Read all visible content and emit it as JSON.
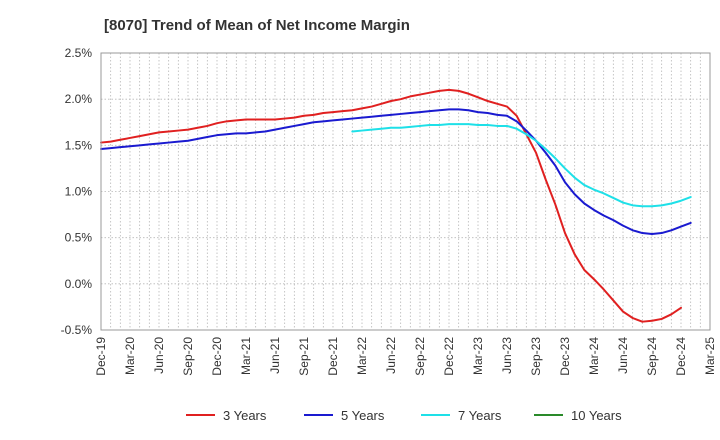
{
  "chart_data": {
    "type": "line",
    "title": "[8070]  Trend of Mean of Net Income Margin",
    "xlabel": "",
    "ylabel": "",
    "x_ticks": [
      "Dec-19",
      "Mar-20",
      "Jun-20",
      "Sep-20",
      "Dec-20",
      "Mar-21",
      "Jun-21",
      "Sep-21",
      "Dec-21",
      "Mar-22",
      "Jun-22",
      "Sep-22",
      "Dec-22",
      "Mar-23",
      "Jun-23",
      "Sep-23",
      "Dec-23",
      "Mar-24",
      "Jun-24",
      "Sep-24",
      "Dec-24",
      "Mar-25"
    ],
    "y_ticks": [
      "2.5%",
      "2.0%",
      "1.5%",
      "1.0%",
      "0.5%",
      "0.0%",
      "-0.5%"
    ],
    "y_tick_values": [
      2.5,
      2.0,
      1.5,
      1.0,
      0.5,
      0.0,
      -0.5
    ],
    "ylim": [
      -0.5,
      2.5
    ],
    "grid": true,
    "legend_position": "bottom",
    "series": [
      {
        "name": "3 Years",
        "color": "#e02020",
        "points": [
          [
            "Dec-19",
            1.53
          ],
          [
            "Jan-20",
            1.54
          ],
          [
            "Feb-20",
            1.56
          ],
          [
            "Mar-20",
            1.58
          ],
          [
            "Apr-20",
            1.6
          ],
          [
            "May-20",
            1.62
          ],
          [
            "Jun-20",
            1.64
          ],
          [
            "Jul-20",
            1.65
          ],
          [
            "Aug-20",
            1.66
          ],
          [
            "Sep-20",
            1.67
          ],
          [
            "Oct-20",
            1.69
          ],
          [
            "Nov-20",
            1.71
          ],
          [
            "Dec-20",
            1.74
          ],
          [
            "Jan-21",
            1.76
          ],
          [
            "Feb-21",
            1.77
          ],
          [
            "Mar-21",
            1.78
          ],
          [
            "Apr-21",
            1.78
          ],
          [
            "May-21",
            1.78
          ],
          [
            "Jun-21",
            1.78
          ],
          [
            "Jul-21",
            1.79
          ],
          [
            "Aug-21",
            1.8
          ],
          [
            "Sep-21",
            1.82
          ],
          [
            "Oct-21",
            1.83
          ],
          [
            "Nov-21",
            1.85
          ],
          [
            "Dec-21",
            1.86
          ],
          [
            "Jan-22",
            1.87
          ],
          [
            "Feb-22",
            1.88
          ],
          [
            "Mar-22",
            1.9
          ],
          [
            "Apr-22",
            1.92
          ],
          [
            "May-22",
            1.95
          ],
          [
            "Jun-22",
            1.98
          ],
          [
            "Jul-22",
            2.0
          ],
          [
            "Aug-22",
            2.03
          ],
          [
            "Sep-22",
            2.05
          ],
          [
            "Oct-22",
            2.07
          ],
          [
            "Nov-22",
            2.09
          ],
          [
            "Dec-22",
            2.1
          ],
          [
            "Jan-23",
            2.09
          ],
          [
            "Feb-23",
            2.06
          ],
          [
            "Mar-23",
            2.02
          ],
          [
            "Apr-23",
            1.98
          ],
          [
            "May-23",
            1.95
          ],
          [
            "Jun-23",
            1.92
          ],
          [
            "Jul-23",
            1.82
          ],
          [
            "Aug-23",
            1.62
          ],
          [
            "Sep-23",
            1.42
          ],
          [
            "Oct-23",
            1.13
          ],
          [
            "Nov-23",
            0.86
          ],
          [
            "Dec-23",
            0.55
          ],
          [
            "Jan-24",
            0.32
          ],
          [
            "Feb-24",
            0.15
          ],
          [
            "Mar-24",
            0.05
          ],
          [
            "Apr-24",
            -0.06
          ],
          [
            "May-24",
            -0.18
          ],
          [
            "Jun-24",
            -0.3
          ],
          [
            "Jul-24",
            -0.37
          ],
          [
            "Aug-24",
            -0.41
          ],
          [
            "Sep-24",
            -0.4
          ],
          [
            "Oct-24",
            -0.38
          ],
          [
            "Nov-24",
            -0.33
          ],
          [
            "Dec-24",
            -0.26
          ]
        ]
      },
      {
        "name": "5 Years",
        "color": "#1a1ad0",
        "points": [
          [
            "Dec-19",
            1.46
          ],
          [
            "Jan-20",
            1.47
          ],
          [
            "Feb-20",
            1.48
          ],
          [
            "Mar-20",
            1.49
          ],
          [
            "Apr-20",
            1.5
          ],
          [
            "May-20",
            1.51
          ],
          [
            "Jun-20",
            1.52
          ],
          [
            "Jul-20",
            1.53
          ],
          [
            "Aug-20",
            1.54
          ],
          [
            "Sep-20",
            1.55
          ],
          [
            "Oct-20",
            1.57
          ],
          [
            "Nov-20",
            1.59
          ],
          [
            "Dec-20",
            1.61
          ],
          [
            "Jan-21",
            1.62
          ],
          [
            "Feb-21",
            1.63
          ],
          [
            "Mar-21",
            1.63
          ],
          [
            "Apr-21",
            1.64
          ],
          [
            "May-21",
            1.65
          ],
          [
            "Jun-21",
            1.67
          ],
          [
            "Jul-21",
            1.69
          ],
          [
            "Aug-21",
            1.71
          ],
          [
            "Sep-21",
            1.73
          ],
          [
            "Oct-21",
            1.75
          ],
          [
            "Nov-21",
            1.76
          ],
          [
            "Dec-21",
            1.77
          ],
          [
            "Jan-22",
            1.78
          ],
          [
            "Feb-22",
            1.79
          ],
          [
            "Mar-22",
            1.8
          ],
          [
            "Apr-22",
            1.81
          ],
          [
            "May-22",
            1.82
          ],
          [
            "Jun-22",
            1.83
          ],
          [
            "Jul-22",
            1.84
          ],
          [
            "Aug-22",
            1.85
          ],
          [
            "Sep-22",
            1.86
          ],
          [
            "Oct-22",
            1.87
          ],
          [
            "Nov-22",
            1.88
          ],
          [
            "Dec-22",
            1.89
          ],
          [
            "Jan-23",
            1.89
          ],
          [
            "Feb-23",
            1.88
          ],
          [
            "Mar-23",
            1.86
          ],
          [
            "Apr-23",
            1.85
          ],
          [
            "May-23",
            1.83
          ],
          [
            "Jun-23",
            1.82
          ],
          [
            "Jul-23",
            1.76
          ],
          [
            "Aug-23",
            1.66
          ],
          [
            "Sep-23",
            1.55
          ],
          [
            "Oct-23",
            1.42
          ],
          [
            "Nov-23",
            1.28
          ],
          [
            "Dec-23",
            1.1
          ],
          [
            "Jan-24",
            0.97
          ],
          [
            "Feb-24",
            0.87
          ],
          [
            "Mar-24",
            0.8
          ],
          [
            "Apr-24",
            0.74
          ],
          [
            "May-24",
            0.69
          ],
          [
            "Jun-24",
            0.63
          ],
          [
            "Jul-24",
            0.58
          ],
          [
            "Aug-24",
            0.55
          ],
          [
            "Sep-24",
            0.54
          ],
          [
            "Oct-24",
            0.55
          ],
          [
            "Nov-24",
            0.58
          ],
          [
            "Dec-24",
            0.62
          ],
          [
            "Jan-25",
            0.66
          ]
        ]
      },
      {
        "name": "7 Years",
        "color": "#1ee0e8",
        "points": [
          [
            "Feb-22",
            1.65
          ],
          [
            "Mar-22",
            1.66
          ],
          [
            "Apr-22",
            1.67
          ],
          [
            "May-22",
            1.68
          ],
          [
            "Jun-22",
            1.69
          ],
          [
            "Jul-22",
            1.69
          ],
          [
            "Aug-22",
            1.7
          ],
          [
            "Sep-22",
            1.71
          ],
          [
            "Oct-22",
            1.72
          ],
          [
            "Nov-22",
            1.72
          ],
          [
            "Dec-22",
            1.73
          ],
          [
            "Jan-23",
            1.73
          ],
          [
            "Feb-23",
            1.73
          ],
          [
            "Mar-23",
            1.72
          ],
          [
            "Apr-23",
            1.72
          ],
          [
            "May-23",
            1.71
          ],
          [
            "Jun-23",
            1.71
          ],
          [
            "Jul-23",
            1.68
          ],
          [
            "Aug-23",
            1.62
          ],
          [
            "Sep-23",
            1.55
          ],
          [
            "Oct-23",
            1.46
          ],
          [
            "Nov-23",
            1.36
          ],
          [
            "Dec-23",
            1.25
          ],
          [
            "Jan-24",
            1.15
          ],
          [
            "Feb-24",
            1.07
          ],
          [
            "Mar-24",
            1.02
          ],
          [
            "Apr-24",
            0.98
          ],
          [
            "May-24",
            0.93
          ],
          [
            "Jun-24",
            0.88
          ],
          [
            "Jul-24",
            0.85
          ],
          [
            "Aug-24",
            0.84
          ],
          [
            "Sep-24",
            0.84
          ],
          [
            "Oct-24",
            0.85
          ],
          [
            "Nov-24",
            0.87
          ],
          [
            "Dec-24",
            0.9
          ],
          [
            "Jan-25",
            0.94
          ]
        ]
      },
      {
        "name": "10 Years",
        "color": "#2a8a2a",
        "points": []
      }
    ]
  }
}
